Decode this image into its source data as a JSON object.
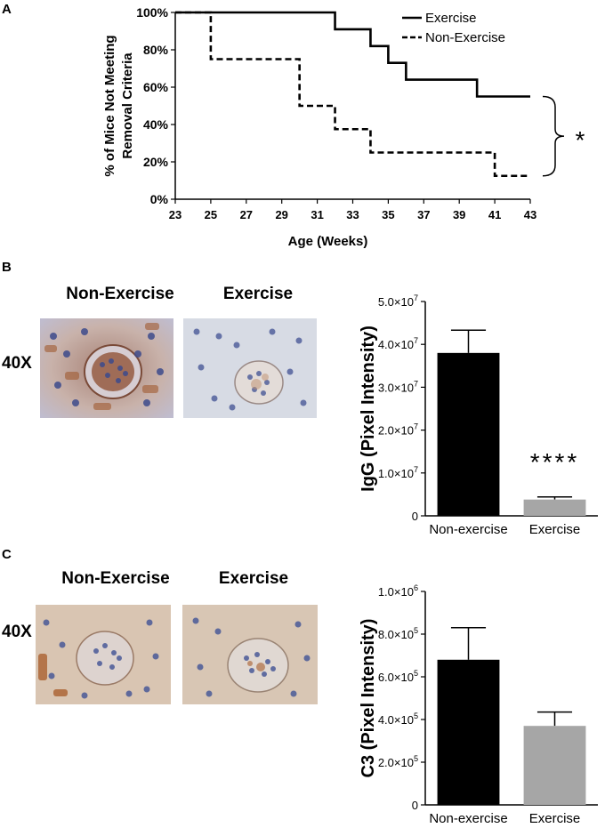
{
  "panel_a": {
    "letter": "A",
    "legend": [
      "Exercise",
      "Non-Exercise"
    ],
    "significance": "*",
    "chart_data": {
      "type": "line",
      "step": true,
      "xlabel": "Age  (Weeks)",
      "ylabel_line1": "% of Mice Not Meeting",
      "ylabel_line2": "Removal Criteria",
      "xlim": [
        23,
        43
      ],
      "ylim": [
        0,
        100
      ],
      "xticks": [
        "23",
        "25",
        "27",
        "29",
        "31",
        "33",
        "35",
        "37",
        "39",
        "41",
        "43"
      ],
      "yticks": [
        "0%",
        "20%",
        "40%",
        "60%",
        "80%",
        "100%"
      ],
      "series": [
        {
          "name": "Exercise",
          "style": "solid",
          "color": "#000000",
          "points": [
            [
              23,
              100
            ],
            [
              32,
              91
            ],
            [
              34,
              82
            ],
            [
              35,
              73
            ],
            [
              36,
              64
            ],
            [
              40,
              55
            ],
            [
              43,
              55
            ]
          ]
        },
        {
          "name": "Non-Exercise",
          "style": "dashed",
          "color": "#000000",
          "points": [
            [
              23,
              100
            ],
            [
              25,
              75
            ],
            [
              30,
              50
            ],
            [
              32,
              37.5
            ],
            [
              34,
              25
            ],
            [
              41,
              12.5
            ],
            [
              43,
              12.5
            ]
          ]
        }
      ]
    }
  },
  "panel_b": {
    "letter": "B",
    "img_titles": [
      "Non-Exercise",
      "Exercise"
    ],
    "magnification": "40X",
    "significance": "****",
    "chart_data": {
      "type": "bar",
      "categories": [
        "Non-exercise",
        "Exercise"
      ],
      "values": [
        38000000,
        3800000
      ],
      "errors": [
        5300000,
        600000
      ],
      "colors": [
        "#000000",
        "#a6a6a6"
      ],
      "ylabel": "IgG (Pixel Intensity)",
      "ylim": [
        0,
        50000000
      ],
      "ytick_values": [
        0,
        10000000,
        20000000,
        30000000,
        40000000,
        50000000
      ],
      "yticks": [
        "0",
        "1.0×10^7",
        "2.0×10^7",
        "3.0×10^7",
        "4.0×10^7",
        "5.0×10^7"
      ]
    }
  },
  "panel_c": {
    "letter": "C",
    "img_titles": [
      "Non-Exercise",
      "Exercise"
    ],
    "magnification": "40X",
    "chart_data": {
      "type": "bar",
      "categories": [
        "Non-exercise",
        "Exercise"
      ],
      "values": [
        680000,
        370000
      ],
      "errors": [
        150000,
        65000
      ],
      "colors": [
        "#000000",
        "#a6a6a6"
      ],
      "ylabel": "C3 (Pixel Intensity)",
      "ylim": [
        0,
        1000000
      ],
      "ytick_values": [
        0,
        200000,
        400000,
        600000,
        800000,
        1000000
      ],
      "yticks": [
        "0",
        "2.0×10^5",
        "4.0×10^5",
        "6.0×10^5",
        "8.0×10^5",
        "1.0×10^6"
      ]
    }
  }
}
